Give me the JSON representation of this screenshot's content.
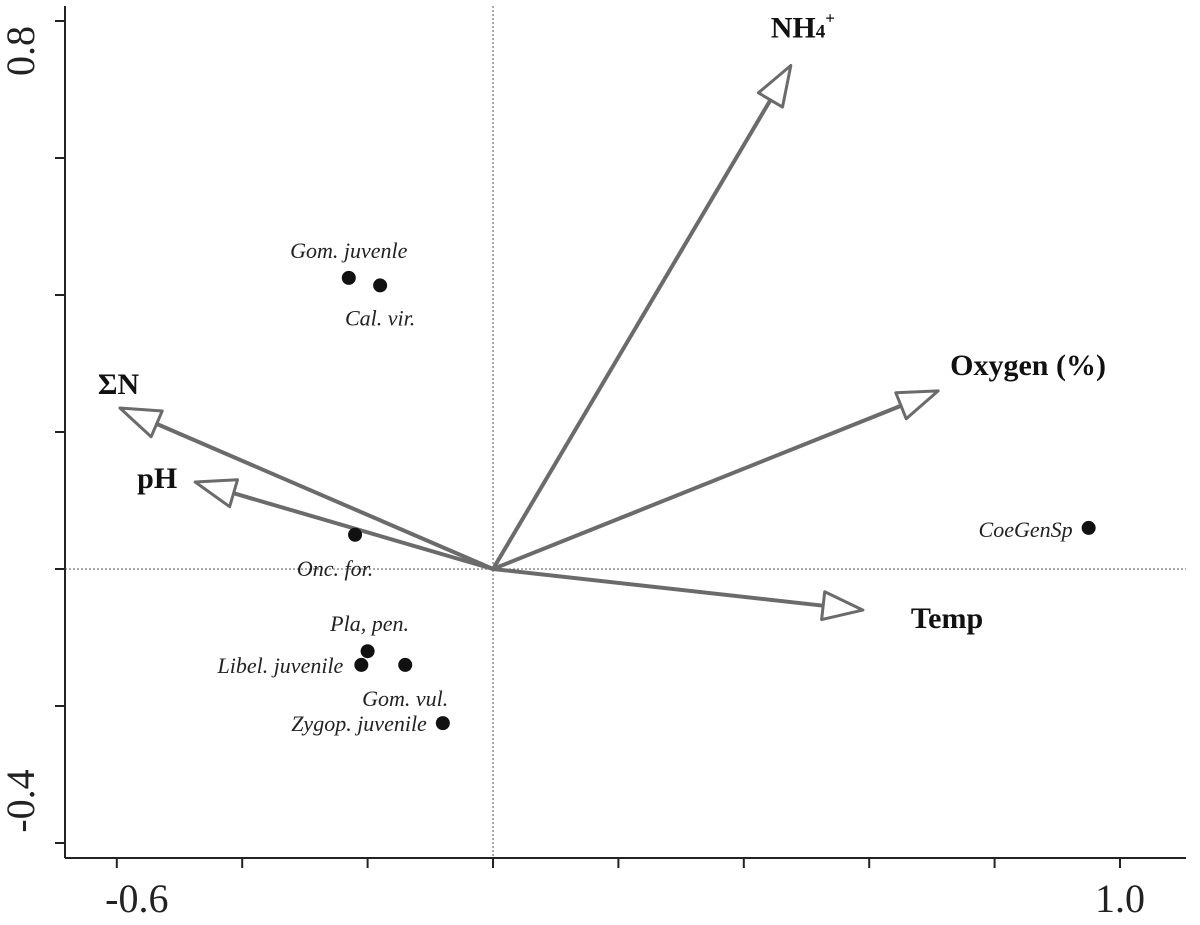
{
  "chart_data": {
    "type": "scatter",
    "subtype": "ordination-biplot",
    "title": "",
    "xlabel": "",
    "ylabel": "",
    "xlim": [
      -0.6,
      1.0
    ],
    "ylim": [
      -0.4,
      0.8
    ],
    "x_tick_labels": [
      "-0.6",
      "1.0"
    ],
    "y_tick_labels": [
      "-0.4",
      "0.8"
    ],
    "origin": [
      0,
      0
    ],
    "reference_lines": {
      "x": 0,
      "y": 0,
      "style": "dotted"
    },
    "grid": false,
    "legend": "none",
    "arrow_color": "#6b6b6b",
    "point_color": "#111111",
    "environmental_vectors": [
      {
        "label": "NH₄⁺",
        "base": "NH",
        "sub": "4",
        "sup": "+",
        "x": 0.475,
        "y": 0.735
      },
      {
        "label": "Oxygen (%)",
        "x": 0.71,
        "y": 0.26
      },
      {
        "label": "ΣN",
        "x": -0.595,
        "y": 0.235
      },
      {
        "label": "pH",
        "x": -0.475,
        "y": 0.127
      },
      {
        "label": "Temp",
        "x": 0.59,
        "y": -0.06
      }
    ],
    "species": [
      {
        "label": "Gom. juvenle",
        "x": -0.23,
        "y": 0.425
      },
      {
        "label": "Cal. vir.",
        "x": -0.18,
        "y": 0.414
      },
      {
        "label": "Onc. for.",
        "x": -0.22,
        "y": 0.05
      },
      {
        "label": "CoeGenSp",
        "x": 0.95,
        "y": 0.06
      },
      {
        "label": "Pla, pen.",
        "x": -0.2,
        "y": -0.12
      },
      {
        "label": "Libel. juvenile",
        "x": -0.21,
        "y": -0.14
      },
      {
        "label": "Gom. vul.",
        "x": -0.14,
        "y": -0.14
      },
      {
        "label": "Zygop. juvenile",
        "x": -0.08,
        "y": -0.225
      }
    ]
  }
}
